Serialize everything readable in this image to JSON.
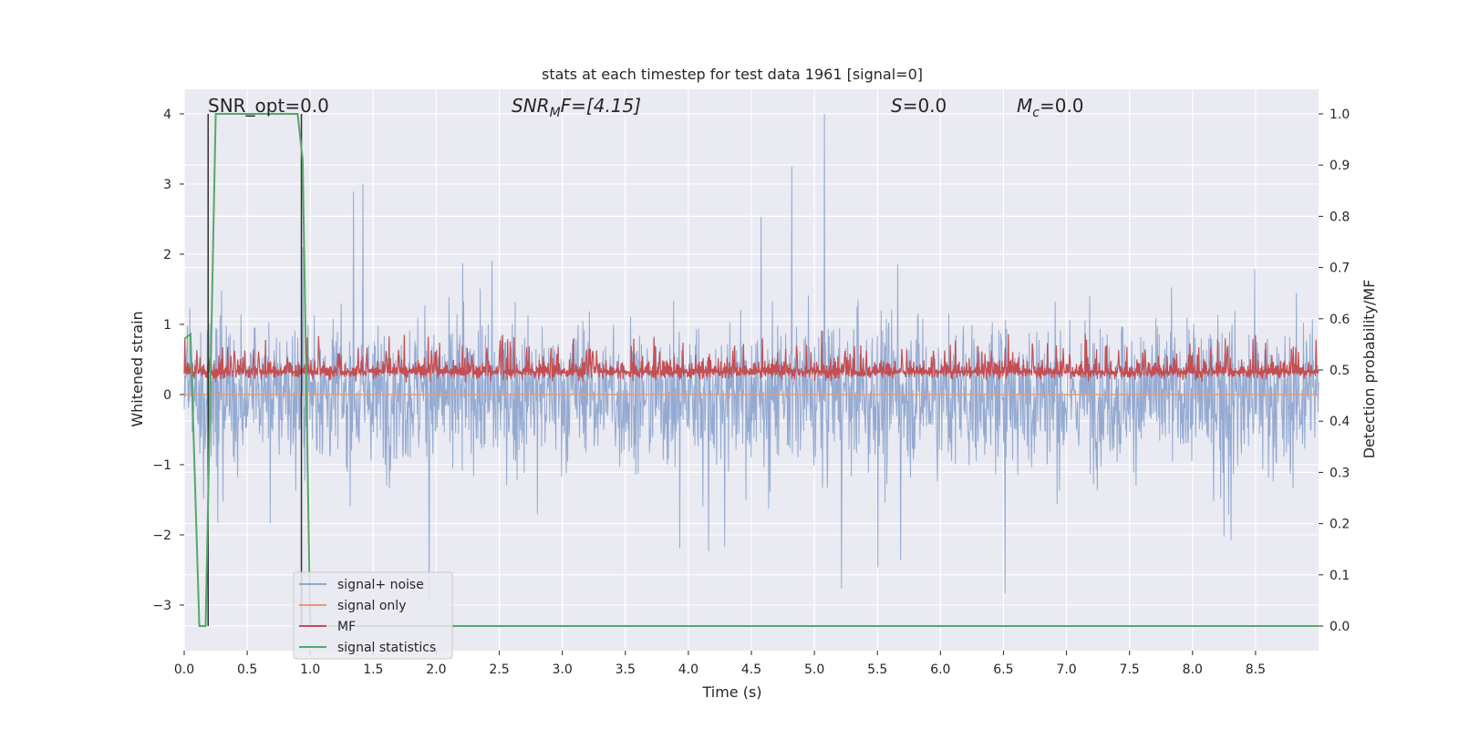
{
  "chart_data": {
    "type": "line",
    "title": "stats at each timestep for test data 1961 [signal=0]",
    "xlabel": "Time (s)",
    "ylabel_left": "Whitened strain",
    "ylabel_right": "Detection probability/MF",
    "xlim": [
      0.0,
      9.0
    ],
    "ylim_left": [
      -3.65,
      4.35
    ],
    "ylim_right": [
      -0.048,
      1.048
    ],
    "grid": true,
    "legend_position": "lower-left",
    "x_ticks": [
      "0.0",
      "0.5",
      "1.0",
      "1.5",
      "2.0",
      "2.5",
      "3.0",
      "3.5",
      "4.0",
      "4.5",
      "5.0",
      "5.5",
      "6.0",
      "6.5",
      "7.0",
      "7.5",
      "8.0",
      "8.5"
    ],
    "y_ticks_left": [
      "−3",
      "−2",
      "−1",
      "0",
      "1",
      "2",
      "3",
      "4"
    ],
    "y_ticks_right": [
      "0.0",
      "0.1",
      "0.2",
      "0.3",
      "0.4",
      "0.5",
      "0.6",
      "0.7",
      "0.8",
      "0.9",
      "1.0"
    ],
    "annotations": {
      "snr_opt": "SNR_opt=0.0",
      "snr_mf_prefix": "SNR",
      "snr_mf_sub": "M",
      "snr_mf_suffix": "F=[4.15]",
      "s_prefix": "S",
      "s_value": "=0.0",
      "mc_prefix": "M",
      "mc_sub": "c",
      "mc_value": "=0.0"
    },
    "series": [
      {
        "name": "signal+ noise",
        "color": "#8fa6cf",
        "axis": "left",
        "description_range": [
          -3.3,
          4.0
        ]
      },
      {
        "name": "signal only",
        "color": "#e59b78",
        "axis": "left",
        "values_constant": 0.0
      },
      {
        "name": "MF",
        "color": "#c44e52",
        "axis": "left",
        "range": [
          0.1,
          1.0
        ]
      },
      {
        "name": "signal statistics",
        "color": "#55a868",
        "axis": "right",
        "x": [
          0.0,
          0.05,
          0.12,
          0.17,
          0.25,
          0.9,
          0.94,
          1.0,
          9.0
        ],
        "y": [
          0.56,
          0.57,
          0.0,
          0.0,
          1.0,
          1.0,
          0.91,
          0.0,
          0.0
        ]
      }
    ],
    "vlines": [
      0.19,
      0.93
    ]
  }
}
